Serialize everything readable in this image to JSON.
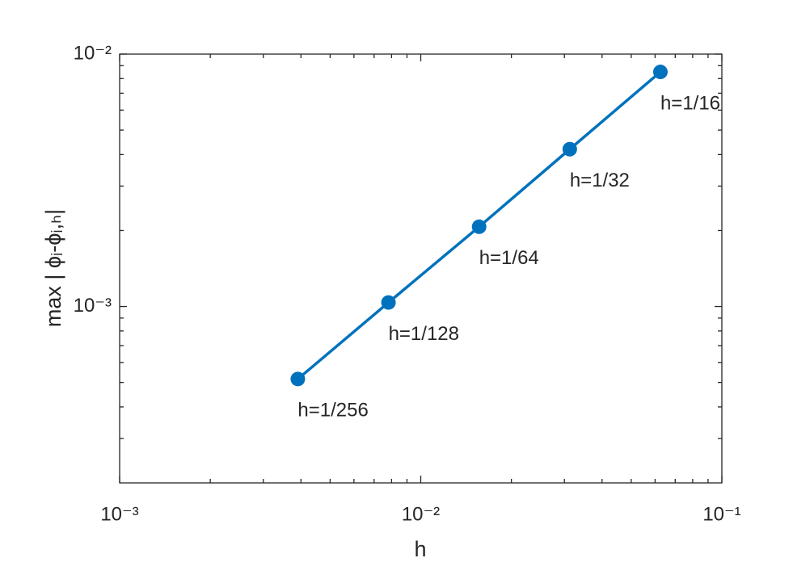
{
  "chart_data": {
    "type": "line",
    "xlabel": "h",
    "ylabel": "max | ϕᵢ-ϕᵢ,ₕ|",
    "x": [
      0.00390625,
      0.0078125,
      0.015625,
      0.03125,
      0.0625
    ],
    "series": [
      {
        "color": "#0072bd",
        "values": [
          0.000516,
          0.001037,
          0.00207,
          0.0042,
          0.0085
        ]
      }
    ],
    "point_labels": [
      "h=1/256",
      "h=1/128",
      "h=1/64",
      "h=1/32",
      "h=1/16"
    ],
    "xlim": [
      0.001,
      0.1
    ],
    "ylim": [
      0.0002,
      0.01
    ],
    "xticks": [
      {
        "value": 0.001,
        "label": "10⁻³"
      },
      {
        "value": 0.01,
        "label": "10⁻²"
      },
      {
        "value": 0.1,
        "label": "10⁻¹"
      }
    ],
    "yticks": [
      {
        "value": 0.001,
        "label": "10⁻³"
      },
      {
        "value": 0.01,
        "label": "10⁻²"
      }
    ],
    "xminorticks": [
      0.002,
      0.003,
      0.004,
      0.005,
      0.006,
      0.007,
      0.008,
      0.009,
      0.02,
      0.03,
      0.04,
      0.05,
      0.06,
      0.07,
      0.08,
      0.09
    ],
    "yminorticks": [
      0.0003,
      0.0004,
      0.0005,
      0.0006,
      0.0007,
      0.0008,
      0.0009,
      0.002,
      0.003,
      0.004,
      0.005,
      0.006,
      0.007,
      0.008,
      0.009
    ],
    "xscale": "log",
    "yscale": "log",
    "grid": false
  }
}
